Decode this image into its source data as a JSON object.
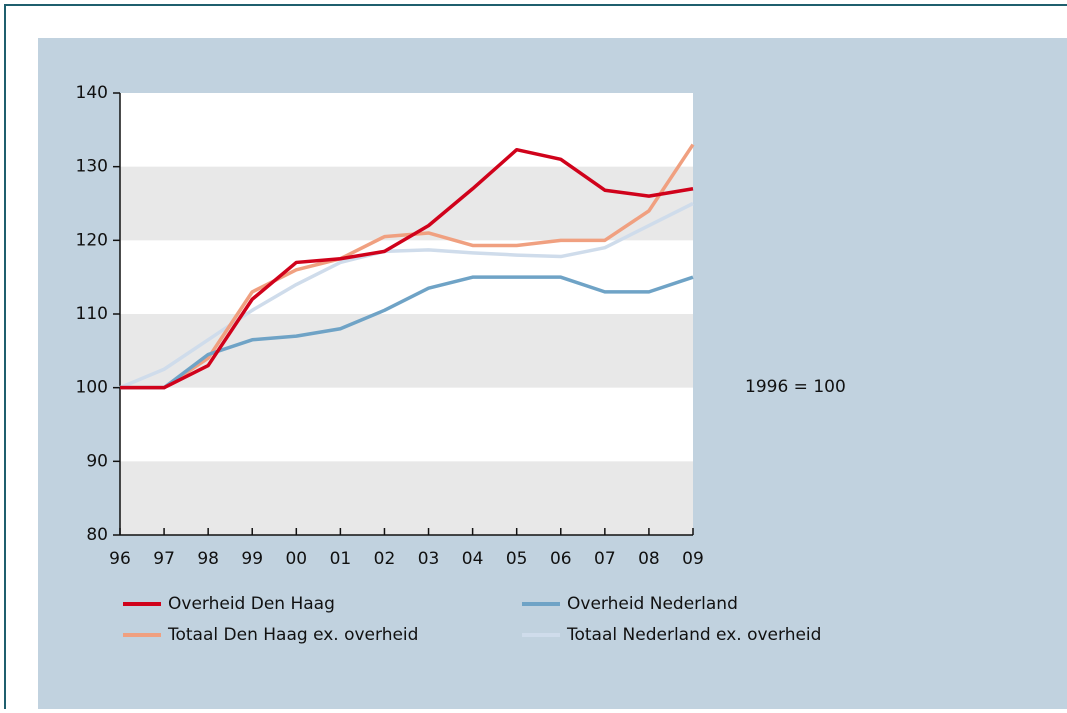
{
  "chart_data": {
    "type": "line",
    "categories": [
      "96",
      "97",
      "98",
      "99",
      "00",
      "01",
      "02",
      "03",
      "04",
      "05",
      "06",
      "07",
      "08",
      "09"
    ],
    "series": [
      {
        "name": "Overheid Den Haag",
        "color": "#d0021b",
        "values": [
          100,
          100,
          103,
          112,
          117,
          117.5,
          118.5,
          122,
          127,
          132.3,
          131,
          126.8,
          126,
          127
        ]
      },
      {
        "name": "Overheid Nederland",
        "color": "#6fa3c6",
        "values": [
          100,
          100,
          104.5,
          106.5,
          107,
          108,
          110.5,
          113.5,
          115,
          115,
          115,
          113,
          113,
          115
        ]
      },
      {
        "name": "Totaal Den Haag ex. overheid",
        "color": "#f0a080",
        "values": [
          100,
          100,
          104,
          113,
          116,
          117.5,
          120.5,
          121,
          119.3,
          119.3,
          120,
          120,
          124,
          133
        ]
      },
      {
        "name": "Totaal Nederland ex. overheid",
        "color": "#cfdceb",
        "values": [
          100,
          102.5,
          106.5,
          110.5,
          114,
          117,
          118.5,
          118.7,
          118.3,
          118,
          117.8,
          119,
          122,
          125
        ]
      }
    ],
    "ylim": [
      80,
      140
    ],
    "yticks": [
      80,
      90,
      100,
      110,
      120,
      130,
      140
    ],
    "grid": true,
    "annotation": "1996 = 100"
  }
}
